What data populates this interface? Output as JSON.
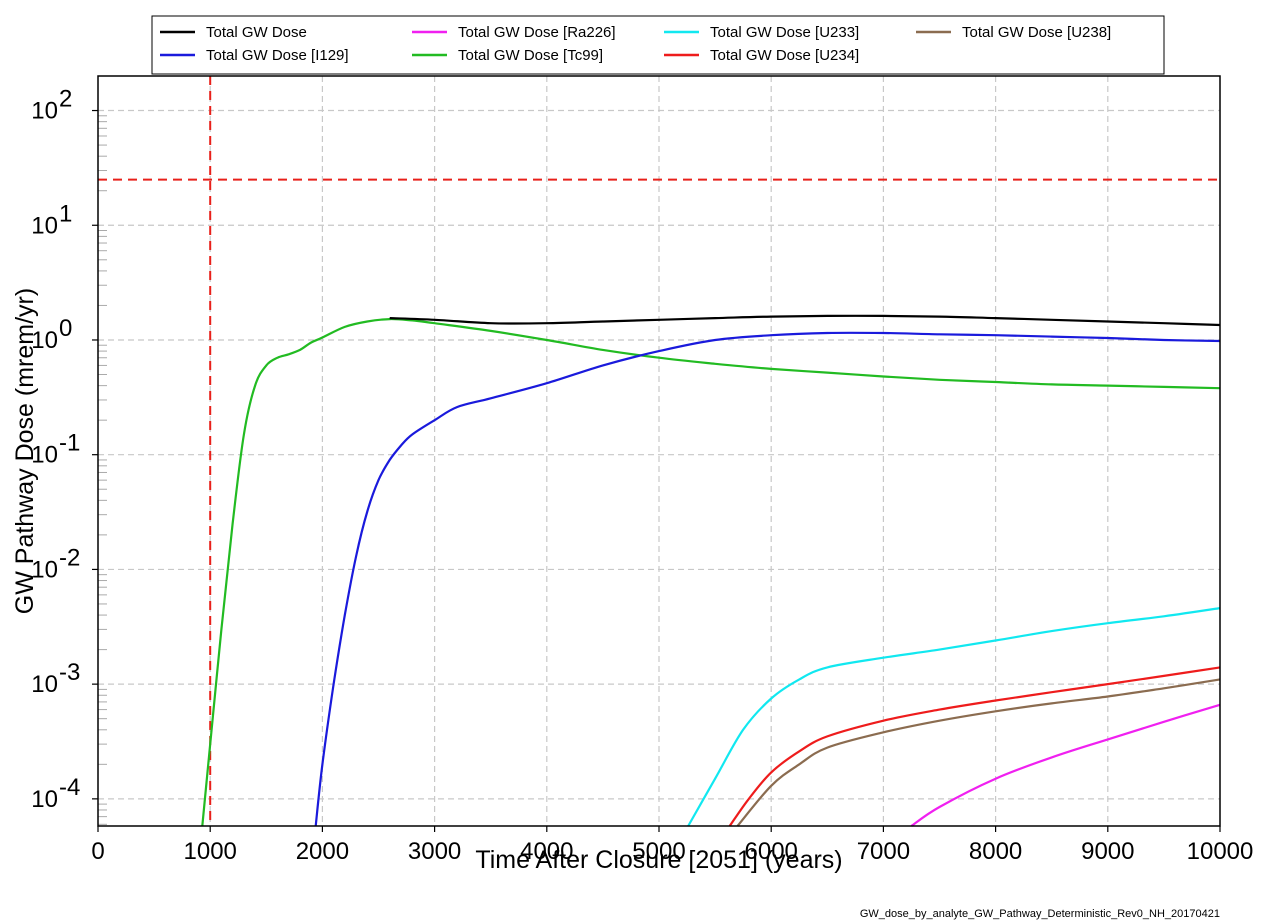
{
  "chart_data": {
    "type": "line",
    "xlabel": "Time After Closure [2051] (years)",
    "ylabel": "GW Pathway Dose (mrem/yr)",
    "xlim": [
      0,
      10000
    ],
    "ylim": [
      5.8e-05,
      200
    ],
    "yscale": "log",
    "grid": true,
    "legend_position": "top-center",
    "x_ticks": [
      "0",
      "1000",
      "2000",
      "3000",
      "4000",
      "5000",
      "6000",
      "7000",
      "8000",
      "9000",
      "10000"
    ],
    "y_ticks": [
      {
        "base": "10",
        "exp": "-4",
        "value": 0.0001
      },
      {
        "base": "10",
        "exp": "-3",
        "value": 0.001
      },
      {
        "base": "10",
        "exp": "-2",
        "value": 0.01
      },
      {
        "base": "10",
        "exp": "-1",
        "value": 0.1
      },
      {
        "base": "10",
        "exp": "0",
        "value": 1
      },
      {
        "base": "10",
        "exp": "1",
        "value": 10
      },
      {
        "base": "10",
        "exp": "2",
        "value": 100
      }
    ],
    "reference_lines": [
      {
        "orientation": "horizontal",
        "value": 25,
        "color": "#e8201a",
        "style": "dashed"
      },
      {
        "orientation": "vertical",
        "value": 1000,
        "color": "#e8201a",
        "style": "dashed"
      }
    ],
    "series": [
      {
        "name": "Total GW Dose",
        "color": "#000000",
        "points": [
          [
            2600,
            1.55
          ],
          [
            3000,
            1.5
          ],
          [
            3500,
            1.4
          ],
          [
            4000,
            1.4
          ],
          [
            4500,
            1.45
          ],
          [
            5000,
            1.5
          ],
          [
            5500,
            1.55
          ],
          [
            6000,
            1.6
          ],
          [
            6500,
            1.62
          ],
          [
            7000,
            1.62
          ],
          [
            7500,
            1.6
          ],
          [
            8000,
            1.55
          ],
          [
            8500,
            1.5
          ],
          [
            9000,
            1.45
          ],
          [
            9500,
            1.4
          ],
          [
            10000,
            1.35
          ]
        ]
      },
      {
        "name": "Total GW Dose [I129]",
        "color": "#1a1adc",
        "points": [
          [
            1940,
            5.8e-05
          ],
          [
            2000,
            0.0002
          ],
          [
            2100,
            0.001
          ],
          [
            2200,
            0.004
          ],
          [
            2300,
            0.013
          ],
          [
            2400,
            0.032
          ],
          [
            2500,
            0.06
          ],
          [
            2600,
            0.09
          ],
          [
            2700,
            0.12
          ],
          [
            2800,
            0.15
          ],
          [
            3000,
            0.2
          ],
          [
            3200,
            0.26
          ],
          [
            3500,
            0.31
          ],
          [
            4000,
            0.42
          ],
          [
            4500,
            0.6
          ],
          [
            5000,
            0.8
          ],
          [
            5500,
            1.0
          ],
          [
            6000,
            1.1
          ],
          [
            6500,
            1.15
          ],
          [
            7000,
            1.15
          ],
          [
            7500,
            1.12
          ],
          [
            8000,
            1.1
          ],
          [
            8500,
            1.07
          ],
          [
            9000,
            1.04
          ],
          [
            9500,
            1.0
          ],
          [
            10000,
            0.98
          ]
        ]
      },
      {
        "name": "Total GW Dose [Ra226]",
        "color": "#f020f0",
        "points": [
          [
            7250,
            5.8e-05
          ],
          [
            7500,
            8.5e-05
          ],
          [
            8000,
            0.00015
          ],
          [
            8500,
            0.00023
          ],
          [
            9000,
            0.00033
          ],
          [
            9500,
            0.00047
          ],
          [
            10000,
            0.00066
          ]
        ]
      },
      {
        "name": "Total GW Dose [Tc99]",
        "color": "#22bb22",
        "points": [
          [
            930,
            5.8e-05
          ],
          [
            1000,
            0.0003
          ],
          [
            1100,
            0.003
          ],
          [
            1200,
            0.025
          ],
          [
            1300,
            0.15
          ],
          [
            1400,
            0.4
          ],
          [
            1500,
            0.6
          ],
          [
            1600,
            0.7
          ],
          [
            1700,
            0.75
          ],
          [
            1800,
            0.82
          ],
          [
            1900,
            0.95
          ],
          [
            2000,
            1.05
          ],
          [
            2200,
            1.3
          ],
          [
            2400,
            1.45
          ],
          [
            2600,
            1.52
          ],
          [
            2800,
            1.48
          ],
          [
            3000,
            1.4
          ],
          [
            3500,
            1.2
          ],
          [
            4000,
            1.0
          ],
          [
            4500,
            0.82
          ],
          [
            5000,
            0.7
          ],
          [
            5500,
            0.62
          ],
          [
            6000,
            0.56
          ],
          [
            6500,
            0.52
          ],
          [
            7000,
            0.48
          ],
          [
            7500,
            0.45
          ],
          [
            8000,
            0.43
          ],
          [
            8500,
            0.41
          ],
          [
            9000,
            0.4
          ],
          [
            9500,
            0.39
          ],
          [
            10000,
            0.38
          ]
        ]
      },
      {
        "name": "Total GW Dose [U233]",
        "color": "#11e8f0",
        "points": [
          [
            5260,
            5.8e-05
          ],
          [
            5500,
            0.00015
          ],
          [
            5750,
            0.0004
          ],
          [
            6000,
            0.00075
          ],
          [
            6250,
            0.0011
          ],
          [
            6500,
            0.0014
          ],
          [
            7000,
            0.0017
          ],
          [
            7500,
            0.002
          ],
          [
            8000,
            0.0024
          ],
          [
            8500,
            0.0029
          ],
          [
            9000,
            0.0034
          ],
          [
            9500,
            0.0039
          ],
          [
            10000,
            0.0046
          ]
        ]
      },
      {
        "name": "Total GW Dose [U234]",
        "color": "#ee1c1c",
        "points": [
          [
            5630,
            5.8e-05
          ],
          [
            5800,
            0.0001
          ],
          [
            6000,
            0.00017
          ],
          [
            6250,
            0.00026
          ],
          [
            6500,
            0.00035
          ],
          [
            7000,
            0.00048
          ],
          [
            7500,
            0.0006
          ],
          [
            8000,
            0.00072
          ],
          [
            8500,
            0.00085
          ],
          [
            9000,
            0.001
          ],
          [
            9500,
            0.00118
          ],
          [
            10000,
            0.0014
          ]
        ]
      },
      {
        "name": "Total GW Dose [U238]",
        "color": "#8b6c50",
        "points": [
          [
            5700,
            5.8e-05
          ],
          [
            6000,
            0.00013
          ],
          [
            6250,
            0.0002
          ],
          [
            6500,
            0.00028
          ],
          [
            7000,
            0.00038
          ],
          [
            7500,
            0.00048
          ],
          [
            8000,
            0.00058
          ],
          [
            8500,
            0.00068
          ],
          [
            9000,
            0.00078
          ],
          [
            9500,
            0.00092
          ],
          [
            10000,
            0.0011
          ]
        ]
      }
    ],
    "footer": "GW_dose_by_analyte_GW_Pathway_Deterministic_Rev0_NH_20170421"
  }
}
